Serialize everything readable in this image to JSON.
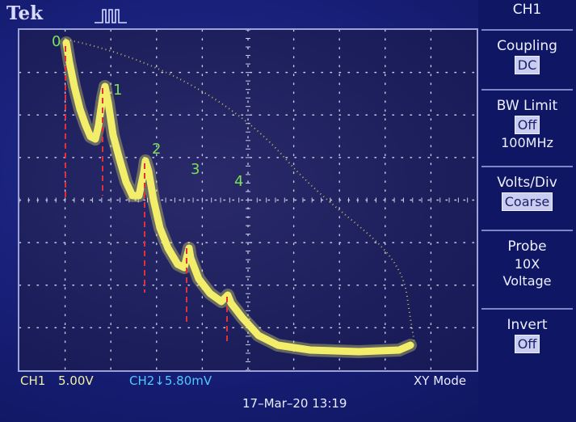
{
  "header": {
    "brand": "Tek",
    "trigger_icon": "pulse-trigger-icon"
  },
  "menu": {
    "title": "CH1",
    "items": [
      {
        "label": "Coupling",
        "value": "DC",
        "boxed": true
      },
      {
        "label": "BW Limit",
        "value": "Off",
        "boxed": true,
        "sub": "100MHz"
      },
      {
        "label": "Volts/Div",
        "value": "Coarse",
        "boxed": true
      },
      {
        "label": "Probe",
        "value": "10X",
        "sub": "Voltage"
      },
      {
        "label": "Invert",
        "value": "Off",
        "boxed": true
      }
    ]
  },
  "status": {
    "ch1_label": "CH1",
    "ch1_scale": "5.00V",
    "ch2_label": "CH2↓5.80mV",
    "mode": "XY Mode",
    "timestamp": "17–Mar–20 13:19"
  },
  "annotations": {
    "peak_labels": [
      "0",
      "1",
      "2",
      "3",
      "4"
    ]
  },
  "colors": {
    "trace": "#f2ee6a",
    "marker": "#e0303a",
    "peak_label": "#79e05a",
    "ch2": "#52c6ff"
  }
}
